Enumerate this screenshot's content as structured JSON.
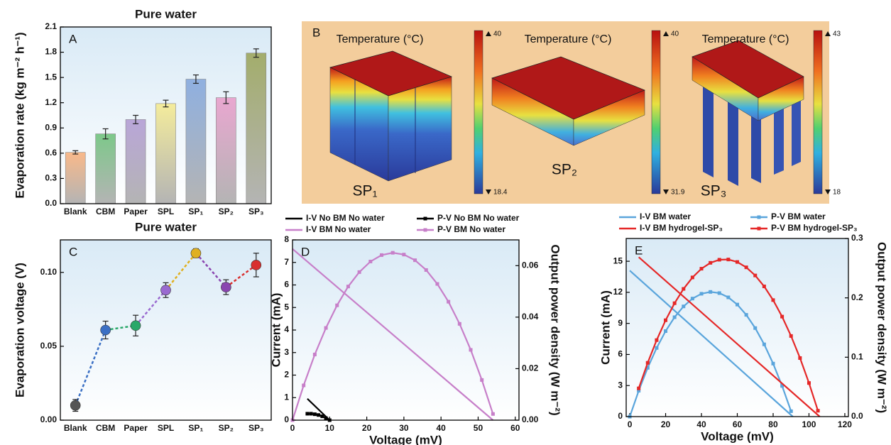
{
  "chart_data": [
    {
      "type": "bar",
      "label": "A",
      "title": "Pure water",
      "ylabel": "Evaporation rate (kg m⁻² h⁻¹)",
      "categories": [
        "Blank",
        "CBM",
        "Paper",
        "SPL",
        "SP₁",
        "SP₂",
        "SP₃"
      ],
      "values": [
        0.61,
        0.83,
        1.0,
        1.19,
        1.48,
        1.26,
        1.79
      ],
      "errors": [
        0.02,
        0.06,
        0.05,
        0.04,
        0.05,
        0.07,
        0.05
      ],
      "colors": [
        "#f9b98a",
        "#7dc88a",
        "#b9a6d8",
        "#f4ec9c",
        "#8fb0e0",
        "#e9a7d0",
        "#a3ad6c"
      ],
      "ylim": [
        0,
        2.1
      ],
      "yticks": [
        {
          "value": 0,
          "label": "0.0"
        },
        0.3,
        0.6,
        0.9,
        1.2,
        1.5,
        1.8,
        2.1
      ]
    },
    {
      "type": "line",
      "label": "C",
      "title": "Pure water",
      "ylabel": "Evaporation voltage (V)",
      "categories": [
        "Blank",
        "CBM",
        "Paper",
        "SPL",
        "SP₁",
        "SP₂",
        "SP₃"
      ],
      "values": [
        0.01,
        0.061,
        0.064,
        0.088,
        0.113,
        0.09,
        0.105
      ],
      "errors": [
        0.004,
        0.006,
        0.007,
        0.005,
        0.003,
        0.005,
        0.008
      ],
      "colors": [
        "#555555",
        "#3a6fc4",
        "#2aa86a",
        "#9a6ad0",
        "#e0b020",
        "#8a45b0",
        "#d93030"
      ],
      "ylim": [
        0,
        0.122
      ],
      "yticks": [
        {
          "value": 0,
          "label": "0.00"
        },
        0.05,
        {
          "value": 0.1,
          "label": "0.10"
        }
      ]
    },
    {
      "type": "line",
      "label": "D",
      "xlabel": "Voltage (mV)",
      "ylabel": "Current (mA)",
      "y2label": "Output power density (W m⁻²)",
      "xlim": [
        0,
        61
      ],
      "xticks": [
        0,
        10,
        20,
        30,
        40,
        50,
        60
      ],
      "ylim": [
        0,
        8
      ],
      "yticks": [
        0,
        1,
        2,
        3,
        4,
        5,
        6,
        7,
        8
      ],
      "y2lim": [
        0,
        0.07
      ],
      "y2ticks": [
        {
          "value": 0,
          "label": "0.00"
        },
        0.02,
        0.04,
        0.06
      ],
      "series": [
        {
          "name": "I-V No BM No water",
          "color": "#000000",
          "x": [
            4,
            10
          ],
          "values": [
            0.95,
            0
          ]
        },
        {
          "name": "P-V No BM No water",
          "color": "#000000",
          "axis": "y2",
          "marker": true,
          "x": [
            4,
            5,
            6,
            7,
            8,
            9,
            10
          ],
          "values": [
            0.0025,
            0.0025,
            0.0023,
            0.002,
            0.0015,
            0.0008,
            0
          ]
        },
        {
          "name": "I-V BM No water",
          "color": "#c77fc9",
          "x": [
            0,
            54
          ],
          "values": [
            7.6,
            0
          ]
        },
        {
          "name": "P-V BM No water",
          "color": "#c77fc9",
          "axis": "y2",
          "marker": true,
          "x": [
            0,
            3,
            6,
            9,
            12,
            15,
            18,
            21,
            24,
            27,
            30,
            33,
            36,
            39,
            42,
            45,
            48,
            51,
            54
          ],
          "values": [
            0,
            0.0135,
            0.0255,
            0.0358,
            0.0446,
            0.0519,
            0.0575,
            0.0616,
            0.0641,
            0.065,
            0.0643,
            0.0621,
            0.0583,
            0.0529,
            0.046,
            0.0374,
            0.0273,
            0.0156,
            0.0024
          ]
        }
      ]
    },
    {
      "type": "line",
      "label": "E",
      "xlabel": "Voltage (mV)",
      "ylabel": "Current (mA)",
      "y2label": "Output power density (W m⁻²)",
      "xlim": [
        -2,
        122
      ],
      "xticks": [
        0,
        20,
        40,
        60,
        80,
        100,
        120
      ],
      "ylim": [
        0,
        17.2
      ],
      "yticks": [
        0,
        3,
        6,
        9,
        12,
        15
      ],
      "y2lim": [
        0,
        0.3
      ],
      "y2ticks": [
        {
          "value": 0,
          "label": "0.0"
        },
        0.1,
        0.2,
        0.3
      ],
      "series": [
        {
          "name": "I-V BM water",
          "color": "#5aa5dc",
          "x": [
            0,
            91
          ],
          "values": [
            14.1,
            0
          ]
        },
        {
          "name": "P-V BM water",
          "color": "#5aa5dc",
          "axis": "y2",
          "marker": true,
          "x": [
            0,
            5,
            10,
            15,
            20,
            25,
            30,
            35,
            40,
            45,
            50,
            55,
            60,
            65,
            70,
            75,
            80,
            85,
            90
          ],
          "values": [
            0,
            0.0436,
            0.0822,
            0.1156,
            0.144,
            0.1674,
            0.1856,
            0.1988,
            0.2069,
            0.21,
            0.208,
            0.2008,
            0.1887,
            0.1714,
            0.1491,
            0.1217,
            0.0893,
            0.0517,
            0.0091
          ]
        },
        {
          "name": "I-V BM hydrogel-SP₃",
          "color": "#e52828",
          "x": [
            5,
            106
          ],
          "values": [
            15.4,
            0
          ]
        },
        {
          "name": "P-V BM hydrogel-SP₃",
          "color": "#e52828",
          "axis": "y2",
          "marker": true,
          "x": [
            5,
            10,
            15,
            20,
            25,
            30,
            35,
            40,
            45,
            50,
            55,
            60,
            65,
            70,
            75,
            80,
            85,
            90,
            95,
            100,
            105
          ],
          "values": [
            0.0476,
            0.0906,
            0.1288,
            0.1623,
            0.191,
            0.2151,
            0.2344,
            0.2491,
            0.259,
            0.2642,
            0.2646,
            0.2604,
            0.2514,
            0.2377,
            0.2193,
            0.1962,
            0.1684,
            0.1358,
            0.0986,
            0.0566,
            0.0099
          ]
        }
      ]
    }
  ],
  "panel_b": {
    "label": "B",
    "panels": [
      {
        "title": "Temperature (°C)",
        "sample": "SP₁",
        "max": "40",
        "min": "18.4"
      },
      {
        "title": "Temperature (°C)",
        "sample": "SP₂",
        "max": "40",
        "min": "31.9"
      },
      {
        "title": "Temperature (°C)",
        "sample": "SP₃",
        "max": "43",
        "min": "18"
      }
    ]
  }
}
